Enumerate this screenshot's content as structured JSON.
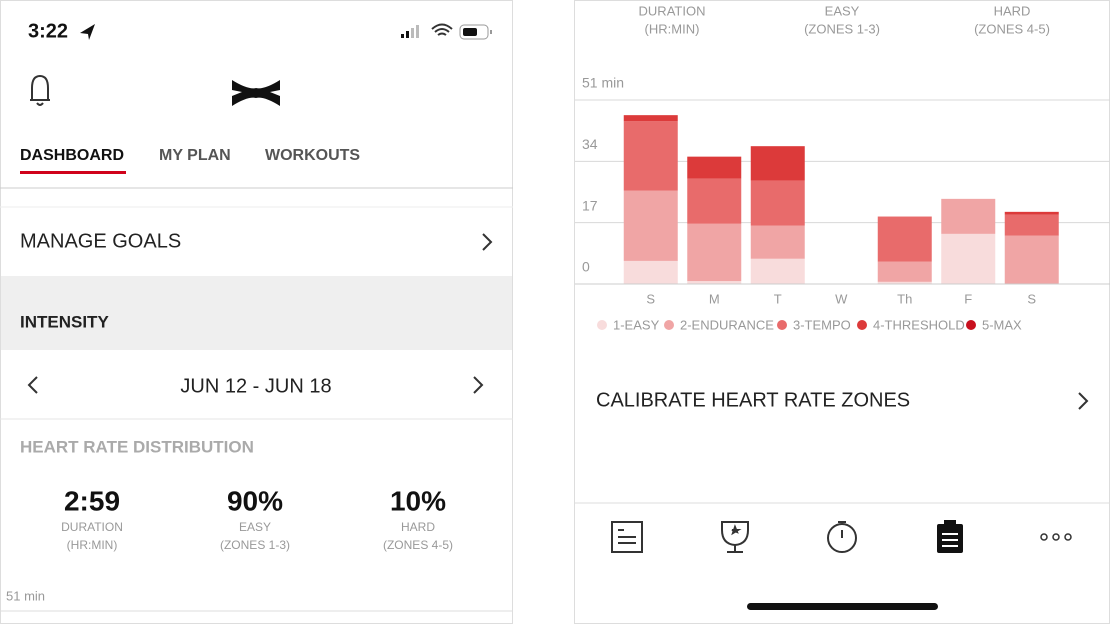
{
  "status_bar": {
    "time": "3:22"
  },
  "tabs": [
    "DASHBOARD",
    "MY PLAN",
    "WORKOUTS"
  ],
  "manage_goals": "MANAGE GOALS",
  "section": "INTENSITY",
  "date_range": "JUN 12 - JUN 18",
  "heading": "HEART RATE DISTRIBUTION",
  "stats": [
    {
      "value": "2:59",
      "label": "DURATION",
      "sub": "(HR:MIN)"
    },
    {
      "value": "90%",
      "label": "EASY",
      "sub": "(ZONES 1-3)"
    },
    {
      "value": "10%",
      "label": "HARD",
      "sub": "(ZONES 4-5)"
    }
  ],
  "chart_data": {
    "type": "bar",
    "stacked": true,
    "categories": [
      "S",
      "M",
      "T",
      "W",
      "Th",
      "F",
      "S"
    ],
    "series": [
      {
        "name": "1-EASY",
        "color": "#f8dcdc",
        "values": [
          6.4,
          0.8,
          7,
          0,
          0.6,
          13.9,
          0
        ]
      },
      {
        "name": "2-ENDURANCE",
        "color": "#f0a5a5",
        "values": [
          19.5,
          15.9,
          9.2,
          0,
          5.6,
          9.7,
          13.4
        ]
      },
      {
        "name": "3-TEMPO",
        "color": "#e86b6b",
        "values": [
          19.2,
          12.5,
          12.5,
          0,
          12.5,
          0,
          5.8
        ]
      },
      {
        "name": "4-THRESHOLD",
        "color": "#dc3a3a",
        "values": [
          1.7,
          6.1,
          9.5,
          0,
          0,
          0,
          0.8
        ]
      },
      {
        "name": "5-MAX",
        "color": "#c8101e",
        "values": [
          0,
          0,
          0,
          0,
          0,
          0,
          0
        ]
      }
    ],
    "ylim": [
      0,
      51
    ],
    "yticks": [
      0,
      17,
      34,
      {
        "value": 51,
        "label": "51 min"
      }
    ],
    "grid": true
  },
  "calibrate": "CALIBRATE HEART RATE ZONES"
}
